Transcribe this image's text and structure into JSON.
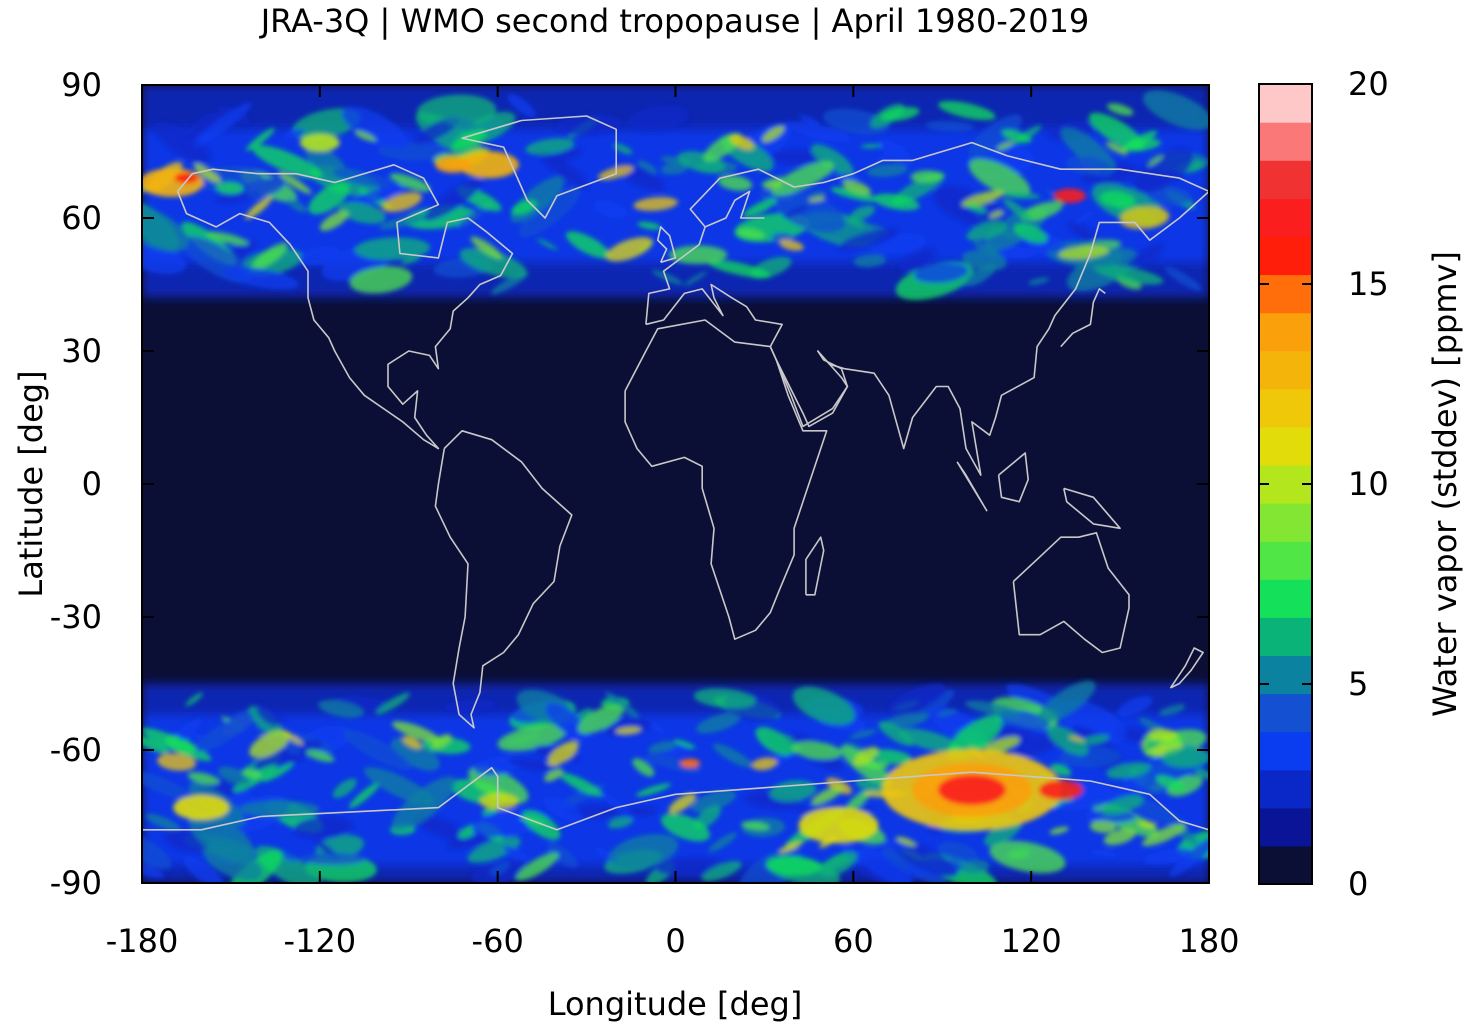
{
  "chart_data": {
    "type": "heatmap",
    "title": "JRA-3Q | WMO second tropopause | April 1980-2019",
    "xlabel": "Longitude [deg]",
    "ylabel": "Latitude [deg]",
    "colorbar_label": "Water vapor (stddev) [ppmv]",
    "xlim": [
      -180,
      180
    ],
    "ylim": [
      -90,
      90
    ],
    "x_ticks": [
      -180,
      -120,
      -60,
      0,
      60,
      120,
      180
    ],
    "x_tick_labels": [
      "-180",
      "-120",
      "-60",
      "0",
      "60",
      "120",
      "180"
    ],
    "y_ticks": [
      90,
      60,
      30,
      0,
      -30,
      -60,
      -90
    ],
    "y_tick_labels": [
      "90",
      "60",
      "30",
      "0",
      "-30",
      "-60",
      "-90"
    ],
    "colorbar_range": [
      0,
      20
    ],
    "colorbar_ticks": [
      20,
      15,
      10,
      5,
      0
    ],
    "colorbar_tick_labels": [
      "20",
      "15",
      "10",
      "5",
      "0"
    ],
    "colorbar_colors": [
      "#0c0f35",
      "#0a1496",
      "#0a28c8",
      "#0a3cf0",
      "#1450d2",
      "#0a82a0",
      "#0ab478",
      "#14e05a",
      "#50e646",
      "#82e632",
      "#b4e61e",
      "#e1dc0a",
      "#f0c80a",
      "#f5b40a",
      "#faa00a",
      "#ff6e0a",
      "#ff1e0a",
      "#fa1e1e",
      "#f03232",
      "#fa7878",
      "#ffc8c8"
    ],
    "background_color": "#0c0f35",
    "coastline_color": "#c8c8c8",
    "highlights": [
      {
        "region": "north-hemisphere-high-latitudes",
        "lat_range": [
          40,
          90
        ],
        "typical_ppmv": 6
      },
      {
        "region": "south-hemisphere-high-latitudes",
        "lat_range": [
          -90,
          -45
        ],
        "typical_ppmv": 6
      },
      {
        "region": "antarctic-max",
        "lon_range": [
          70,
          140
        ],
        "lat_range": [
          -76,
          -62
        ],
        "max_ppmv": 17
      },
      {
        "region": "tropics",
        "lat_range": [
          -35,
          35
        ],
        "typical_ppmv": 0
      }
    ]
  }
}
